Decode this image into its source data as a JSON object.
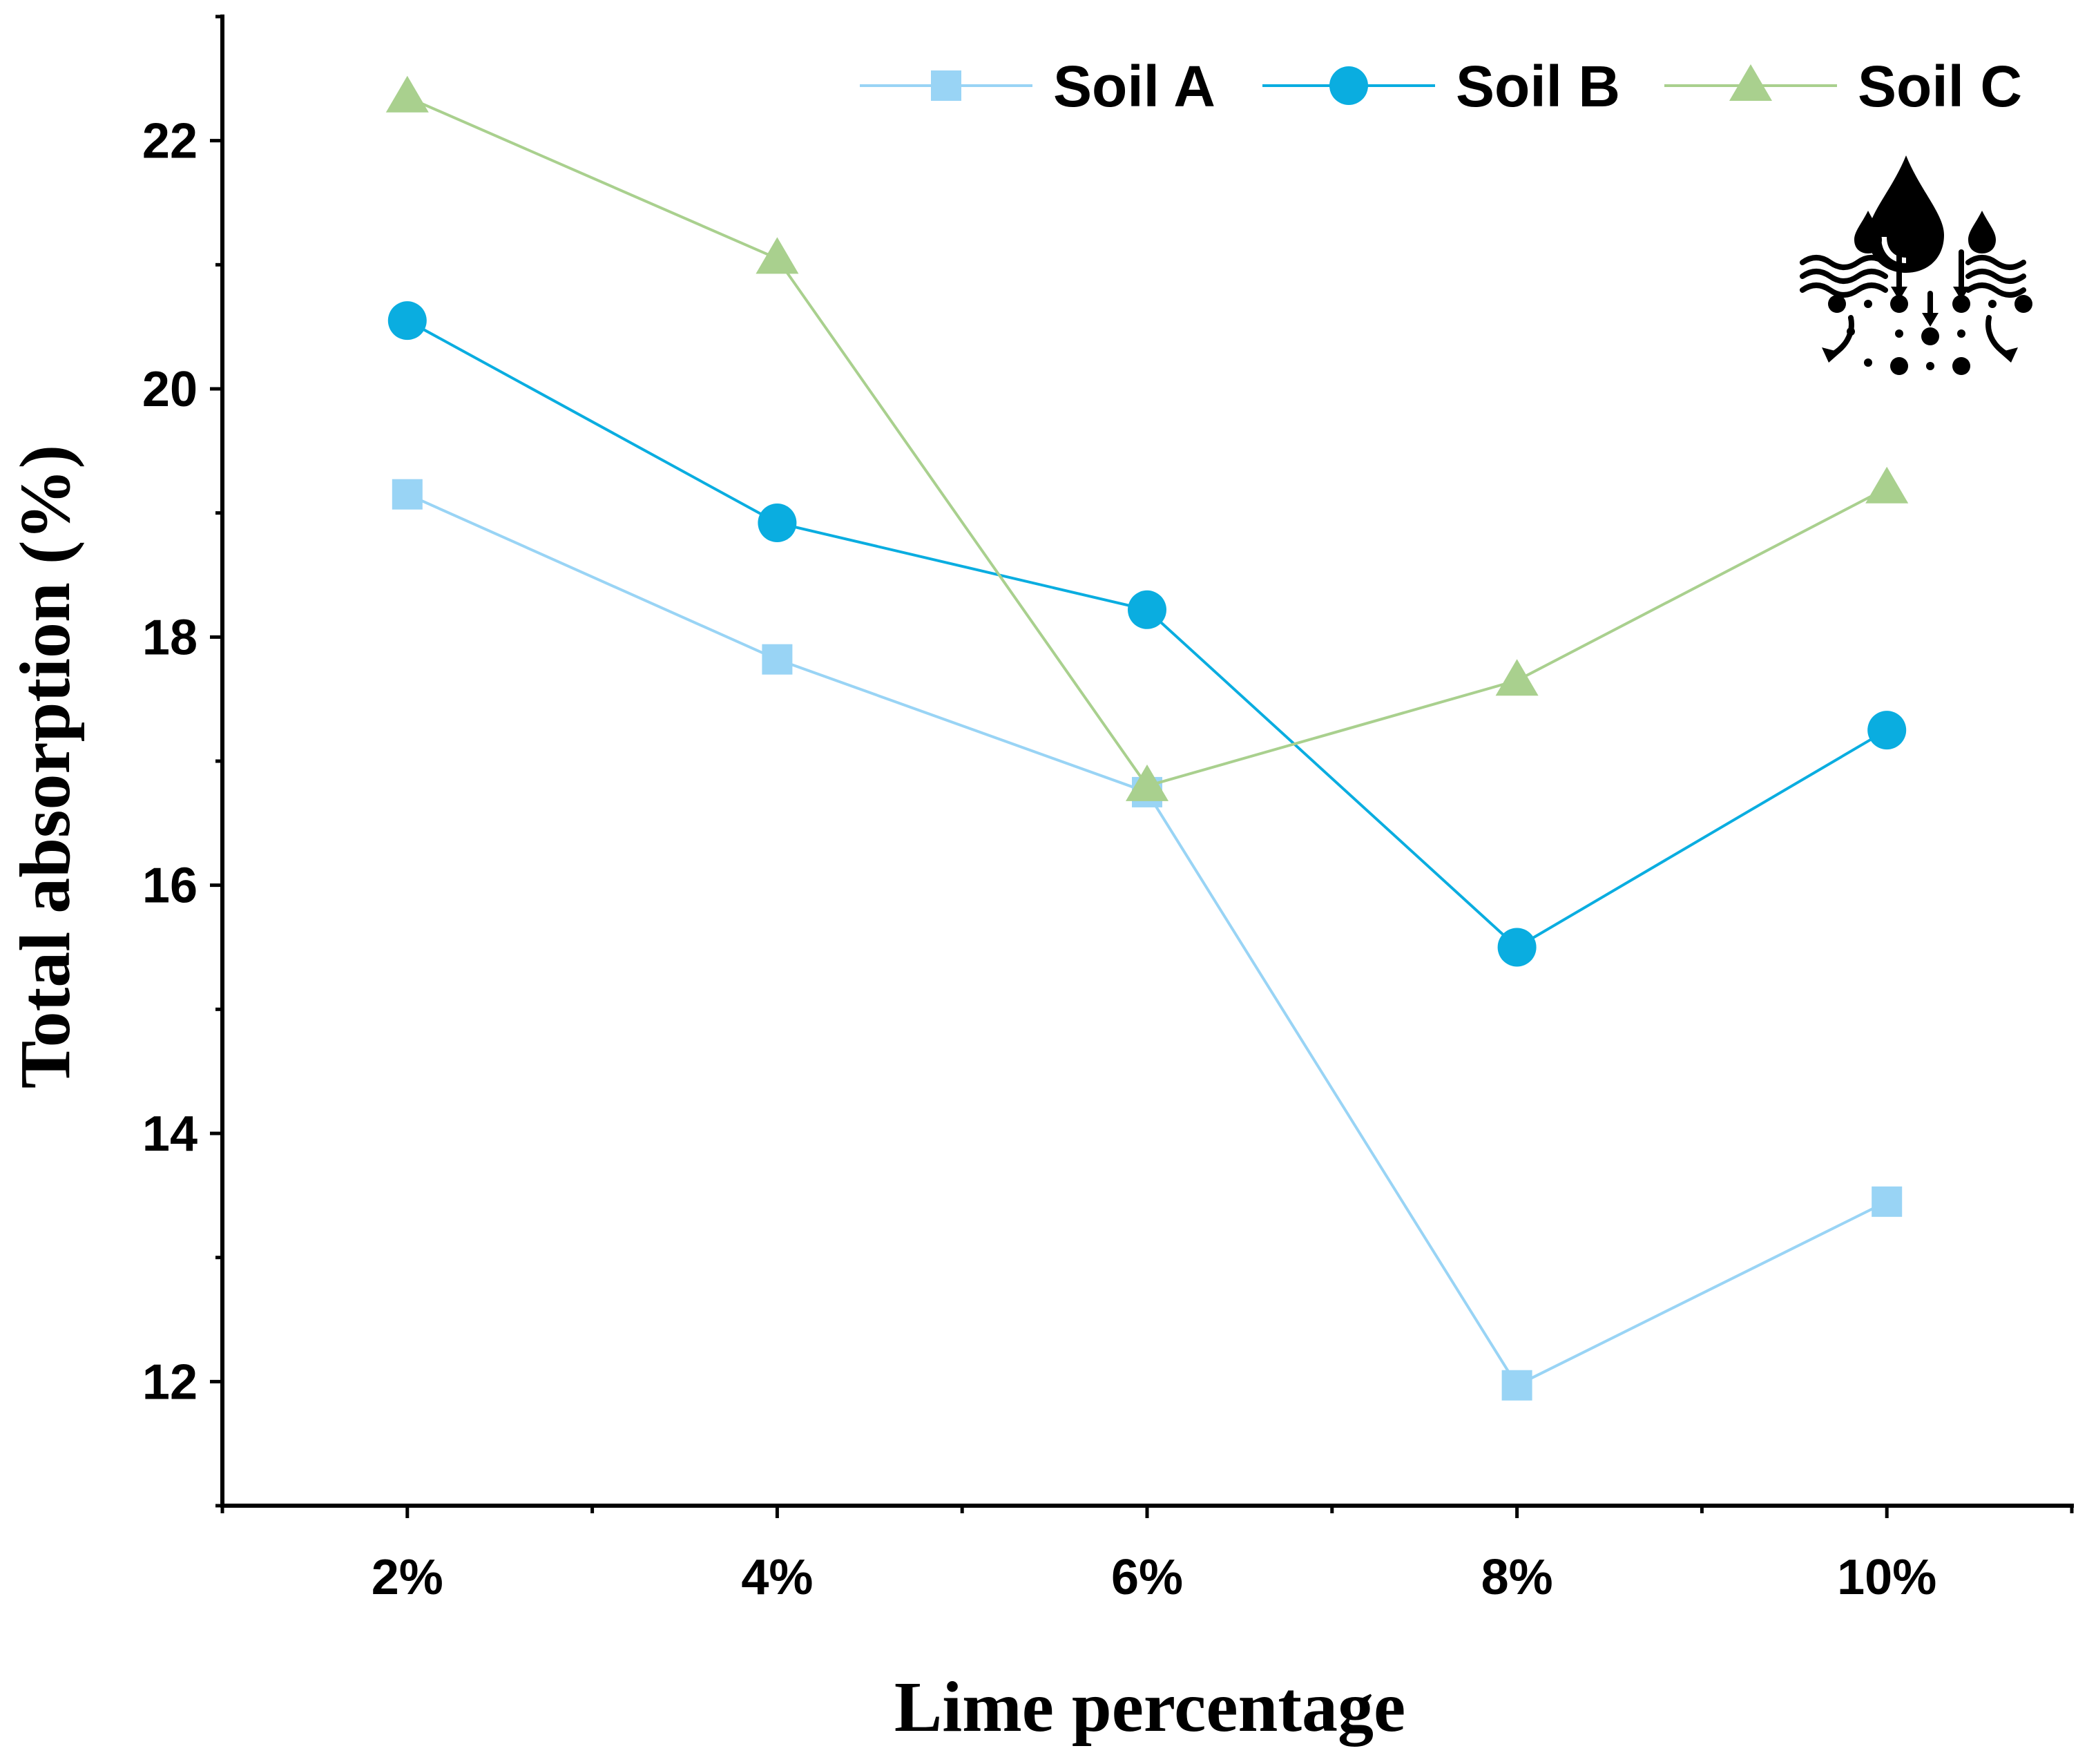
{
  "chart_data": {
    "type": "line",
    "title": "",
    "xlabel": "Lime percentage",
    "ylabel": "Total absorption  (%)",
    "categories": [
      "2%",
      "4%",
      "6%",
      "8%",
      "10%"
    ],
    "ylim": [
      11,
      23
    ],
    "yticks": [
      12,
      14,
      16,
      18,
      20,
      22
    ],
    "legend_position": "top-right",
    "series": [
      {
        "name": "Soil A",
        "marker": "square",
        "color": "#99D4F5",
        "values": [
          19.15,
          17.82,
          16.75,
          11.97,
          13.45
        ]
      },
      {
        "name": "Soil B",
        "marker": "circle",
        "color": "#0AADE0",
        "values": [
          20.55,
          18.92,
          18.22,
          15.5,
          17.25
        ]
      },
      {
        "name": "Soil C",
        "marker": "triangle",
        "color": "#A9D08E",
        "values": [
          22.35,
          21.05,
          16.8,
          17.65,
          19.2
        ]
      }
    ],
    "icon": "water-infiltration-icon"
  }
}
